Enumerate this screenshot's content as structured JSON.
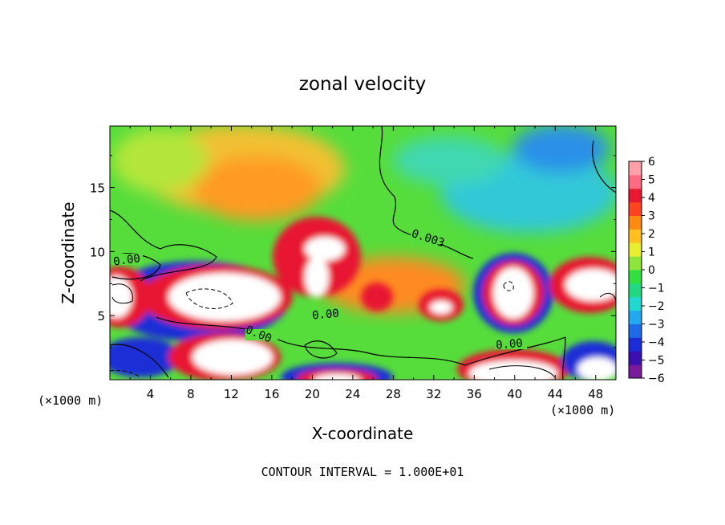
{
  "chart_data": {
    "type": "heatmap",
    "title": "zonal velocity",
    "xlabel": "X-coordinate",
    "ylabel": "Z-coordinate",
    "x_unit_label": "(×1000 m)",
    "y_unit_label": "(×1000 m)",
    "xlim": [
      0,
      50
    ],
    "ylim": [
      0,
      19.8
    ],
    "x_ticks": [
      4,
      8,
      12,
      16,
      20,
      24,
      28,
      32,
      36,
      40,
      44,
      48
    ],
    "y_ticks": [
      5,
      10,
      15
    ],
    "colorbar": {
      "min": -6,
      "max": 6,
      "ticks": [
        6,
        5,
        4,
        3,
        2,
        1,
        0,
        -1,
        -2,
        -3,
        -4,
        -5,
        -6
      ],
      "colors": [
        "#7a1a9c",
        "#3b0fb0",
        "#1a2dd6",
        "#1e6be8",
        "#22a8f0",
        "#20d8d0",
        "#22d880",
        "#2fe040",
        "#8ee63a",
        "#e8ee30",
        "#ffc020",
        "#ff8a10",
        "#ff4420",
        "#e81830",
        "#ff6a80",
        "#ffa0a8"
      ]
    },
    "contour_labels": [
      "0.00",
      "0.00",
      "0.00",
      "0.003",
      "0.00"
    ],
    "footer": "CONTOUR INTERVAL = 1.000E+01"
  }
}
